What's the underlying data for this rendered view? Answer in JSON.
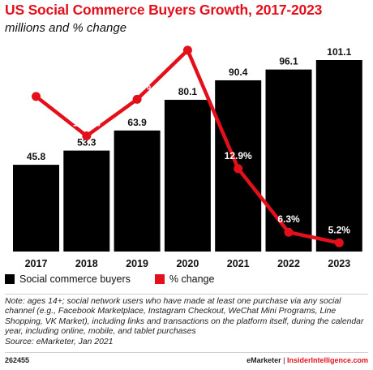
{
  "header": {
    "title": "US Social Commerce Buyers Growth, 2017-2023",
    "subtitle": "millions and % change"
  },
  "chart_data": {
    "type": "bar",
    "title": "US Social Commerce Buyers Growth, 2017-2023",
    "subtitle": "millions and % change",
    "categories": [
      "2017",
      "2018",
      "2019",
      "2020",
      "2021",
      "2022",
      "2023"
    ],
    "series": [
      {
        "name": "Social commerce buyers",
        "type": "bar",
        "color": "#000000",
        "values": [
          45.8,
          53.3,
          63.9,
          80.1,
          90.4,
          96.1,
          101.1
        ]
      },
      {
        "name": "% change",
        "type": "line",
        "color": "#e3101b",
        "values": [
          20.4,
          16.3,
          20.1,
          25.2,
          12.9,
          6.3,
          5.2
        ]
      }
    ],
    "bar_labels": [
      "45.8",
      "53.3",
      "63.9",
      "80.1",
      "90.4",
      "96.1",
      "101.1"
    ],
    "line_labels": [
      "20.4%",
      "16.3%",
      "20.1%",
      "25.2%",
      "12.9%",
      "6.3%",
      "5.2%"
    ],
    "grid": false,
    "legend_position": "bottom-left"
  },
  "legend": {
    "bars_label": "Social commerce buyers",
    "line_label": "% change",
    "bar_color": "#000000",
    "line_color": "#e3101b"
  },
  "note": {
    "text": "Note: ages 14+; social network users who have made at least one purchase via any social channel (e.g., Facebook Marketplace, Instagram Checkout, WeChat Mini Programs, Line Shopping, VK Market), including links and transactions on the platform itself, during the calendar year, including online, mobile, and tablet purchases",
    "source": "Source: eMarketer, Jan 2021"
  },
  "footer": {
    "chart_id": "262455",
    "brand_primary": "eMarketer",
    "separator": "|",
    "brand_secondary": "InsiderIntelligence.com"
  }
}
